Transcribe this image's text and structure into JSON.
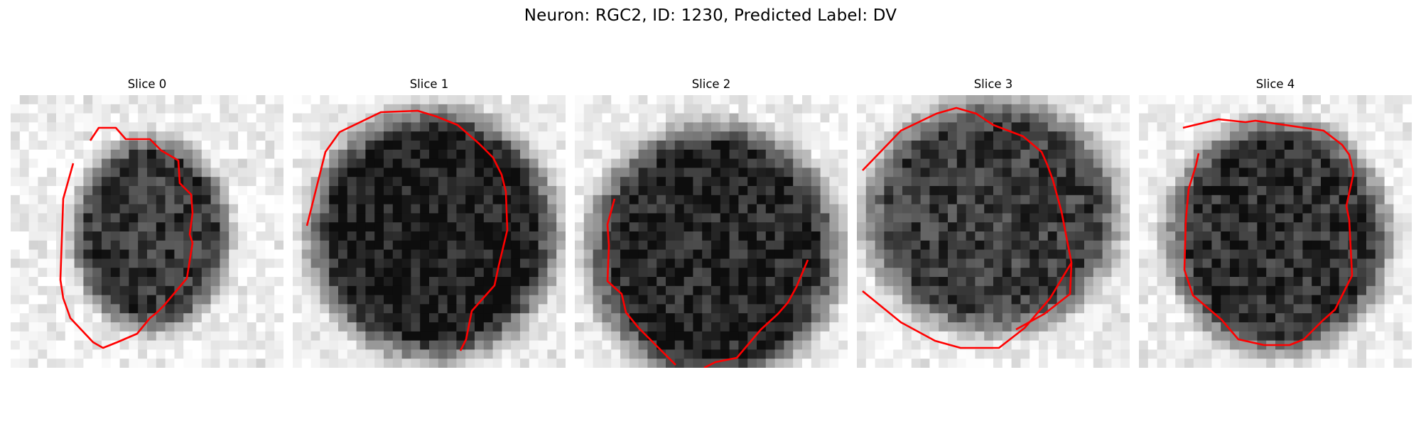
{
  "figure": {
    "title": "Neuron: RGC2, ID: 1230, Predicted Label: DV"
  },
  "colors": {
    "contour": "#ff0000",
    "background": "#ffffff"
  },
  "panels": [
    {
      "title": "Slice 0"
    },
    {
      "title": "Slice 1"
    },
    {
      "title": "Slice 2"
    },
    {
      "title": "Slice 3"
    },
    {
      "title": "Slice 4"
    }
  ]
}
